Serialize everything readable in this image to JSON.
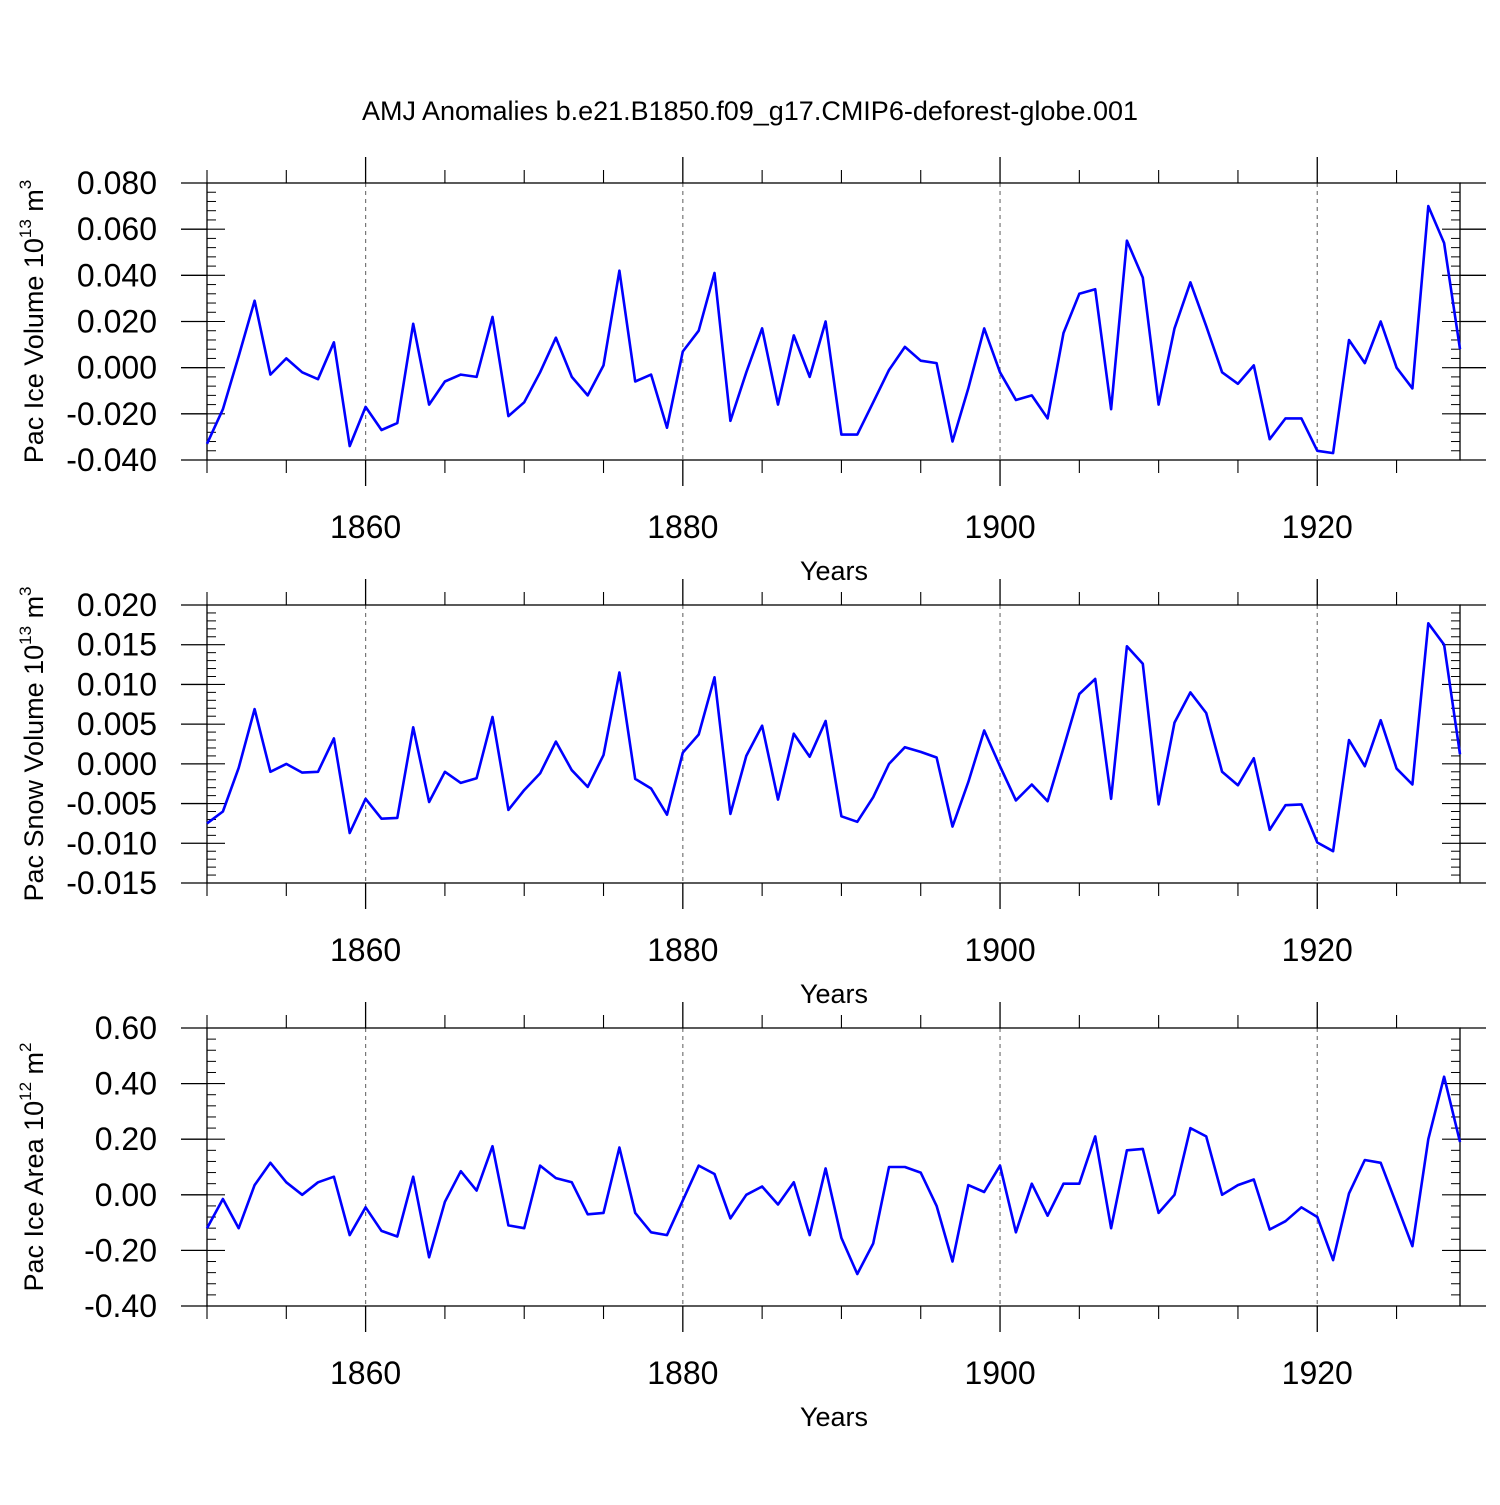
{
  "title": "AMJ Anomalies b.e21.B1850.f09_g17.CMIP6-deforest-globe.001",
  "colors": {
    "line": "#0000ff",
    "axis": "#000000",
    "grid": "#777777"
  },
  "chart_data": [
    {
      "type": "line",
      "xlabel": "Years",
      "ylabel": "Pac Ice Volume 10",
      "ylabel_sup": "13",
      "ylabel_unit": " m",
      "ylabel_unit_sup": "3",
      "xlim": [
        1850,
        1929
      ],
      "ylim": [
        -0.04,
        0.08
      ],
      "yticks": [
        -0.04,
        -0.02,
        0.0,
        0.02,
        0.04,
        0.06,
        0.08
      ],
      "ytick_labels": [
        "-0.040",
        "-0.020",
        "0.000",
        "0.020",
        "0.040",
        "0.060",
        "0.080"
      ],
      "xticks": [
        1860,
        1880,
        1900,
        1920
      ],
      "xtick_labels": [
        "1860",
        "1880",
        "1900",
        "1920"
      ],
      "grid": "vertical dashed at major x ticks",
      "x": [
        1850,
        1851,
        1852,
        1853,
        1854,
        1855,
        1856,
        1857,
        1858,
        1859,
        1860,
        1861,
        1862,
        1863,
        1864,
        1865,
        1866,
        1867,
        1868,
        1869,
        1870,
        1871,
        1872,
        1873,
        1874,
        1875,
        1876,
        1877,
        1878,
        1879,
        1880,
        1881,
        1882,
        1883,
        1884,
        1885,
        1886,
        1887,
        1888,
        1889,
        1890,
        1891,
        1892,
        1893,
        1894,
        1895,
        1896,
        1897,
        1898,
        1899,
        1900,
        1901,
        1902,
        1903,
        1904,
        1905,
        1906,
        1907,
        1908,
        1909,
        1910,
        1911,
        1912,
        1913,
        1914,
        1915,
        1916,
        1917,
        1918,
        1919,
        1920,
        1921,
        1922,
        1923,
        1924,
        1925,
        1926,
        1927,
        1928,
        1929
      ],
      "series": [
        {
          "values": [
            -0.033,
            -0.018,
            0.005,
            0.029,
            -0.003,
            0.004,
            -0.002,
            -0.005,
            0.011,
            -0.034,
            -0.017,
            -0.027,
            -0.024,
            0.019,
            -0.016,
            -0.006,
            -0.003,
            -0.004,
            0.022,
            -0.021,
            -0.015,
            -0.002,
            0.013,
            -0.004,
            -0.012,
            0.001,
            0.042,
            -0.006,
            -0.003,
            -0.026,
            0.007,
            0.016,
            0.041,
            -0.023,
            -0.002,
            0.017,
            -0.016,
            0.014,
            -0.004,
            0.02,
            -0.029,
            -0.029,
            -0.015,
            -0.001,
            0.009,
            0.003,
            0.002,
            -0.032,
            -0.009,
            0.017,
            -0.002,
            -0.014,
            -0.012,
            -0.022,
            0.015,
            0.032,
            0.034,
            -0.018,
            0.055,
            0.039,
            -0.016,
            0.017,
            0.037,
            0.018,
            -0.002,
            -0.007,
            0.001,
            -0.031,
            -0.022,
            -0.022,
            -0.036,
            -0.037,
            0.012,
            0.002,
            0.02,
            0.0,
            -0.009,
            0.07,
            0.054,
            0.008
          ]
        }
      ]
    },
    {
      "type": "line",
      "xlabel": "Years",
      "ylabel": "Pac Snow Volume 10",
      "ylabel_sup": "13",
      "ylabel_unit": " m",
      "ylabel_unit_sup": "3",
      "xlim": [
        1850,
        1929
      ],
      "ylim": [
        -0.015,
        0.02
      ],
      "yticks": [
        -0.015,
        -0.01,
        -0.005,
        0.0,
        0.005,
        0.01,
        0.015,
        0.02
      ],
      "ytick_labels": [
        "-0.015",
        "-0.010",
        "-0.005",
        "0.000",
        "0.005",
        "0.010",
        "0.015",
        "0.020"
      ],
      "xticks": [
        1860,
        1880,
        1900,
        1920
      ],
      "xtick_labels": [
        "1860",
        "1880",
        "1900",
        "1920"
      ],
      "grid": "vertical dashed at major x ticks",
      "x": [
        1850,
        1851,
        1852,
        1853,
        1854,
        1855,
        1856,
        1857,
        1858,
        1859,
        1860,
        1861,
        1862,
        1863,
        1864,
        1865,
        1866,
        1867,
        1868,
        1869,
        1870,
        1871,
        1872,
        1873,
        1874,
        1875,
        1876,
        1877,
        1878,
        1879,
        1880,
        1881,
        1882,
        1883,
        1884,
        1885,
        1886,
        1887,
        1888,
        1889,
        1890,
        1891,
        1892,
        1893,
        1894,
        1895,
        1896,
        1897,
        1898,
        1899,
        1900,
        1901,
        1902,
        1903,
        1904,
        1905,
        1906,
        1907,
        1908,
        1909,
        1910,
        1911,
        1912,
        1913,
        1914,
        1915,
        1916,
        1917,
        1918,
        1919,
        1920,
        1921,
        1922,
        1923,
        1924,
        1925,
        1926,
        1927,
        1928,
        1929
      ],
      "series": [
        {
          "values": [
            -0.0075,
            -0.006,
            -0.0005,
            0.0069,
            -0.001,
            0.0,
            -0.0011,
            -0.001,
            0.0032,
            -0.0087,
            -0.0044,
            -0.0069,
            -0.0068,
            0.0046,
            -0.0048,
            -0.001,
            -0.0024,
            -0.0018,
            0.0059,
            -0.0058,
            -0.0033,
            -0.0012,
            0.0028,
            -0.0008,
            -0.0029,
            0.0011,
            0.0115,
            -0.0019,
            -0.0031,
            -0.0064,
            0.0014,
            0.0037,
            0.0109,
            -0.0063,
            0.001,
            0.0048,
            -0.0045,
            0.0038,
            0.0009,
            0.0054,
            -0.0066,
            -0.0073,
            -0.0042,
            0.0,
            0.0021,
            0.0015,
            0.0008,
            -0.0079,
            -0.0023,
            0.0042,
            -0.0003,
            -0.0046,
            -0.0026,
            -0.0047,
            0.002,
            0.0088,
            0.0107,
            -0.0044,
            0.0148,
            0.0126,
            -0.0051,
            0.0052,
            0.009,
            0.0064,
            -0.001,
            -0.0027,
            0.0007,
            -0.0083,
            -0.0052,
            -0.0051,
            -0.0099,
            -0.011,
            0.003,
            -0.0003,
            0.0055,
            -0.0006,
            -0.0026,
            0.0177,
            0.015,
            0.0012
          ]
        }
      ]
    },
    {
      "type": "line",
      "xlabel": "Years",
      "ylabel": "Pac Ice Area 10",
      "ylabel_sup": "12",
      "ylabel_unit": " m",
      "ylabel_unit_sup": "2",
      "xlim": [
        1850,
        1929
      ],
      "ylim": [
        -0.4,
        0.6
      ],
      "yticks": [
        -0.4,
        -0.2,
        0.0,
        0.2,
        0.4,
        0.6
      ],
      "ytick_labels": [
        "-0.40",
        "-0.20",
        "0.00",
        "0.20",
        "0.40",
        "0.60"
      ],
      "xticks": [
        1860,
        1880,
        1900,
        1920
      ],
      "xtick_labels": [
        "1860",
        "1880",
        "1900",
        "1920"
      ],
      "grid": "vertical dashed at major x ticks",
      "x": [
        1850,
        1851,
        1852,
        1853,
        1854,
        1855,
        1856,
        1857,
        1858,
        1859,
        1860,
        1861,
        1862,
        1863,
        1864,
        1865,
        1866,
        1867,
        1868,
        1869,
        1870,
        1871,
        1872,
        1873,
        1874,
        1875,
        1876,
        1877,
        1878,
        1879,
        1880,
        1881,
        1882,
        1883,
        1884,
        1885,
        1886,
        1887,
        1888,
        1889,
        1890,
        1891,
        1892,
        1893,
        1894,
        1895,
        1896,
        1897,
        1898,
        1899,
        1900,
        1901,
        1902,
        1903,
        1904,
        1905,
        1906,
        1907,
        1908,
        1909,
        1910,
        1911,
        1912,
        1913,
        1914,
        1915,
        1916,
        1917,
        1918,
        1919,
        1920,
        1921,
        1922,
        1923,
        1924,
        1925,
        1926,
        1927,
        1928,
        1929
      ],
      "series": [
        {
          "values": [
            -0.12,
            -0.015,
            -0.12,
            0.035,
            0.115,
            0.045,
            0.0,
            0.045,
            0.065,
            -0.145,
            -0.045,
            -0.13,
            -0.15,
            0.065,
            -0.225,
            -0.025,
            0.085,
            0.015,
            0.175,
            -0.11,
            -0.12,
            0.105,
            0.06,
            0.045,
            -0.07,
            -0.065,
            0.17,
            -0.065,
            -0.135,
            -0.145,
            -0.02,
            0.105,
            0.075,
            -0.085,
            0.0,
            0.03,
            -0.035,
            0.045,
            -0.145,
            0.095,
            -0.155,
            -0.285,
            -0.175,
            0.1,
            0.1,
            0.08,
            -0.04,
            -0.24,
            0.035,
            0.01,
            0.105,
            -0.135,
            0.04,
            -0.075,
            0.04,
            0.04,
            0.21,
            -0.12,
            0.16,
            0.165,
            -0.065,
            0.0,
            0.24,
            0.21,
            0.0,
            0.035,
            0.055,
            -0.125,
            -0.095,
            -0.045,
            -0.08,
            -0.235,
            0.005,
            0.125,
            0.115,
            -0.035,
            -0.185,
            0.2,
            0.425,
            0.19
          ]
        }
      ]
    }
  ]
}
